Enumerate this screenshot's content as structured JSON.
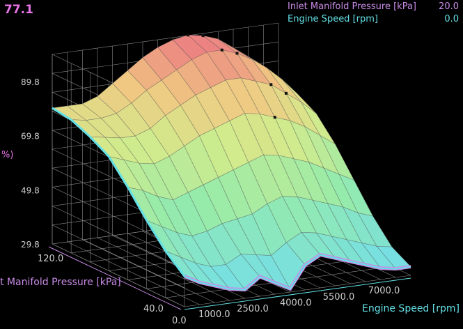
{
  "header": {
    "current_value": "77.1",
    "readouts": [
      {
        "label": "Inlet Manifold Pressure [kPa]",
        "value": "20.0",
        "color": "#c98be6"
      },
      {
        "label": "Engine Speed [rpm]",
        "value": "0.0",
        "color": "#63e0e6"
      }
    ]
  },
  "colors": {
    "background": "#000000",
    "grid": "#8a8a8a",
    "pressure_axis": "#c98be6",
    "speed_axis": "#63e0e6",
    "value_text": "#e874e8"
  },
  "chart_data": {
    "type": "heatmap",
    "subtype": "3d-surface",
    "z_ticks": [
      "89.8",
      "69.8",
      "49.8",
      "29.8"
    ],
    "z_axis_label_fragment": "%)",
    "x_axis_label": "Engine Speed [rpm]",
    "x_ticks": [
      "1000.0",
      "2500.0",
      "4000.0",
      "5500.0",
      "7000.0"
    ],
    "y_axis_label": "t Manifold Pressure [kPa]",
    "y_ticks": [
      "120.0",
      "40.0",
      "0.0"
    ],
    "pressure_kpa": [
      0,
      20,
      40,
      60,
      80,
      100,
      120,
      140
    ],
    "speed_rpm": [
      500,
      1000,
      1500,
      2000,
      2500,
      3000,
      3500,
      4000,
      4500,
      5000,
      5500,
      6000,
      6500,
      7000,
      7500,
      8000
    ],
    "zlim": [
      29.8,
      99.8
    ],
    "grid": true,
    "z_values": [
      [
        41,
        38,
        36,
        34,
        33,
        37,
        34,
        31,
        39,
        42,
        40,
        38,
        36,
        34,
        33,
        33
      ],
      [
        47,
        44,
        41,
        39,
        39,
        42,
        41,
        40,
        44,
        47,
        46,
        44,
        42,
        40,
        38,
        37
      ],
      [
        55,
        52,
        49,
        47,
        48,
        50,
        51,
        52,
        55,
        57,
        56,
        54,
        52,
        50,
        47,
        45
      ],
      [
        64,
        62,
        59,
        57,
        59,
        61,
        63,
        65,
        67,
        69,
        68,
        66,
        64,
        61,
        58,
        55
      ],
      [
        72,
        70,
        68,
        67,
        69,
        72,
        75,
        77,
        79,
        81,
        80,
        78,
        76,
        73,
        69,
        65
      ],
      [
        76,
        75,
        74,
        74,
        76,
        80,
        83,
        86,
        88,
        90,
        90,
        88,
        86,
        82,
        78,
        73
      ],
      [
        79,
        78,
        78,
        79,
        82,
        86,
        89,
        92,
        95,
        97,
        97,
        95,
        92,
        88,
        83,
        77
      ],
      [
        80,
        80,
        80,
        82,
        86,
        90,
        94,
        97,
        99,
        100,
        99,
        97,
        93,
        89,
        84,
        78
      ]
    ],
    "markers": [
      [
        7,
        9
      ],
      [
        7,
        10
      ],
      [
        6,
        10
      ],
      [
        6,
        11
      ],
      [
        5,
        12
      ],
      [
        5,
        13
      ],
      [
        4,
        11
      ]
    ]
  }
}
